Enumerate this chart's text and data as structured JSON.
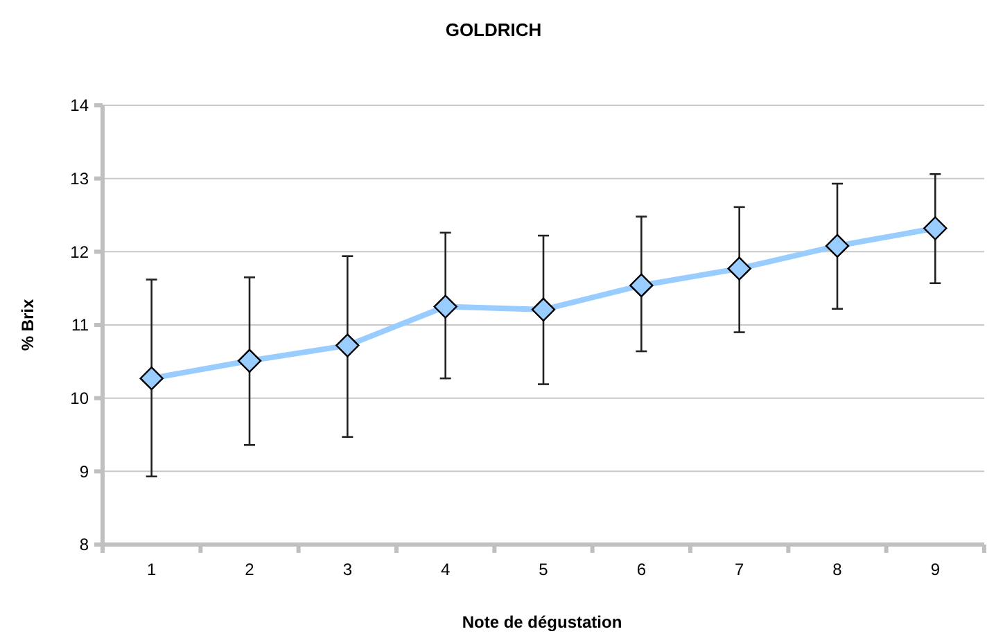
{
  "chart_data": {
    "type": "line",
    "title": "GOLDRICH",
    "xlabel": "Note de dégustation",
    "ylabel": "% Brix",
    "categories": [
      "1",
      "2",
      "3",
      "4",
      "5",
      "6",
      "7",
      "8",
      "9"
    ],
    "series": [
      {
        "color": "#99ccff",
        "values": [
          10.27,
          10.51,
          10.72,
          11.25,
          11.21,
          11.54,
          11.77,
          12.08,
          12.32
        ],
        "errors": [
          [
            8.93,
            11.62
          ],
          [
            9.36,
            11.65
          ],
          [
            9.47,
            11.94
          ],
          [
            10.27,
            12.26
          ],
          [
            10.19,
            12.22
          ],
          [
            10.64,
            12.48
          ],
          [
            10.9,
            12.61
          ],
          [
            11.22,
            12.93
          ],
          [
            11.57,
            13.06
          ]
        ]
      }
    ],
    "ylim": [
      8,
      14
    ],
    "yticks": [
      8,
      9,
      10,
      11,
      12,
      13,
      14
    ],
    "grid": "y",
    "marker": "diamond",
    "line_style": "solid"
  }
}
